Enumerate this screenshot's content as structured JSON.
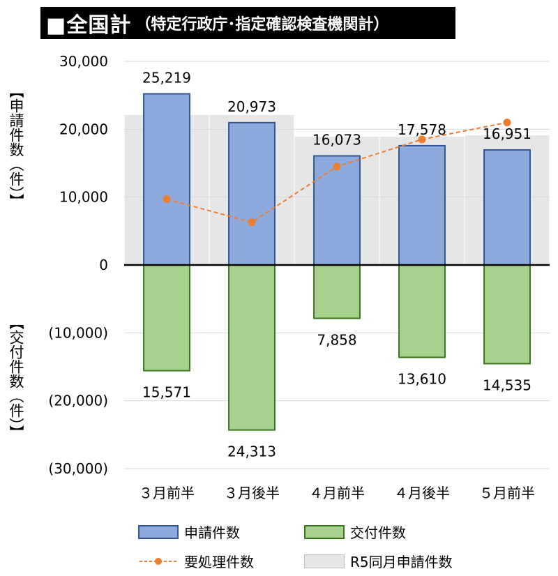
{
  "title": {
    "main": "■全国計",
    "sub": "（特定行政庁･指定確認検査機関計）"
  },
  "axis": {
    "upper_label": "【申請件数（件）】",
    "lower_label": "【交付件数（件）】"
  },
  "chart_data": {
    "type": "bar",
    "categories": [
      "３月前半",
      "３月後半",
      "４月前半",
      "４月後半",
      "５月前半"
    ],
    "ylim": [
      -30000,
      30000
    ],
    "yticks": [
      30000,
      20000,
      10000,
      0,
      -10000,
      -20000,
      -30000
    ],
    "ytick_labels": [
      "30,000",
      "20,000",
      "10,000",
      "0",
      "(10,000)",
      "(20,000)",
      "(30,000)"
    ],
    "series": [
      {
        "name": "申請件数",
        "kind": "bar",
        "color": "#8eaadc",
        "edge": "#2f5597",
        "values": [
          25219,
          20973,
          16073,
          17578,
          16951
        ],
        "labels": [
          "25,219",
          "20,973",
          "16,073",
          "17,578",
          "16,951"
        ]
      },
      {
        "name": "交付件数",
        "kind": "bar",
        "color": "#a9d18e",
        "edge": "#38761d",
        "values": [
          -15571,
          -24313,
          -7858,
          -13610,
          -14535
        ],
        "labels": [
          "15,571",
          "24,313",
          "7,858",
          "13,610",
          "14,535"
        ]
      },
      {
        "name": "要処理件数",
        "kind": "line",
        "color": "#ed7d31",
        "values": [
          9700,
          6300,
          14500,
          18500,
          21000
        ]
      },
      {
        "name": "R5同月申請件数",
        "kind": "background-bar",
        "color": "#e7e6e6",
        "values": [
          22100,
          22100,
          18900,
          18900,
          19100
        ]
      }
    ],
    "grid": true,
    "legend_position": "bottom"
  }
}
